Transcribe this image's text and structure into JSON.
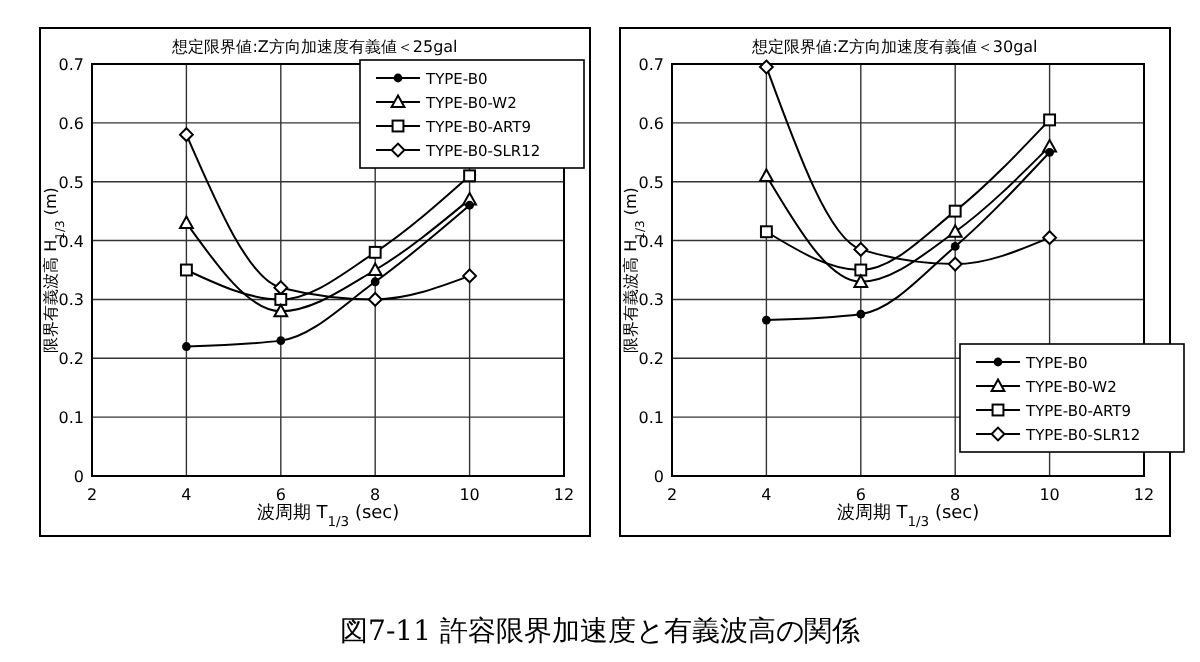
{
  "chart_data": [
    {
      "type": "line",
      "title": "想定限界値:Z方向加速度有義値＜25gal",
      "xlabel": "波周期 T$_{1/3}$ (sec)",
      "ylabel": "限界有義波高 H$_{1/3}$ (m)",
      "x": [
        4,
        6,
        8,
        10
      ],
      "xlim": [
        2,
        12
      ],
      "xticks": [
        2,
        4,
        6,
        8,
        10,
        12
      ],
      "ylim": [
        0,
        0.7
      ],
      "yticks": [
        0,
        0.1,
        0.2,
        0.3,
        0.4,
        0.5,
        0.6,
        0.7
      ],
      "grid": true,
      "legend": "top right",
      "line_style": "solid",
      "series": [
        {
          "name": "TYPE-B0",
          "color": "#000000",
          "marker": "circle",
          "values": [
            0.22,
            0.23,
            0.33,
            0.46
          ]
        },
        {
          "name": "TYPE-B0-W2",
          "color": "#000000",
          "marker": "triangle",
          "values": [
            0.43,
            0.28,
            0.35,
            0.47
          ]
        },
        {
          "name": "TYPE-B0-ART9",
          "color": "#000000",
          "marker": "square",
          "values": [
            0.35,
            0.3,
            0.38,
            0.51
          ]
        },
        {
          "name": "TYPE-B0-SLR12",
          "color": "#000000",
          "marker": "diamond",
          "values": [
            0.58,
            0.32,
            0.3,
            0.34
          ]
        }
      ],
      "annotations": [
        "図7-11 許容限界加速度と有義波高の関係"
      ]
    },
    {
      "type": "line",
      "title": "想定限界値:Z方向加速度有義値＜30gal",
      "xlabel": "波周期 T$_{1/3}$ (sec)",
      "ylabel": "限界有義波高 H$_{1/3}$ (m)",
      "x": [
        4,
        6,
        8,
        10
      ],
      "xlim": [
        2,
        12
      ],
      "xticks": [
        2,
        4,
        6,
        8,
        10,
        12
      ],
      "ylim": [
        0,
        0.7
      ],
      "yticks": [
        0,
        0.1,
        0.2,
        0.3,
        0.4,
        0.5,
        0.6,
        0.7
      ],
      "grid": true,
      "legend": "bottom right",
      "line_style": "solid",
      "series": [
        {
          "name": "TYPE-B0",
          "color": "#000000",
          "marker": "circle",
          "values": [
            0.265,
            0.275,
            0.39,
            0.55
          ]
        },
        {
          "name": "TYPE-B0-W2",
          "color": "#000000",
          "marker": "triangle",
          "values": [
            0.51,
            0.33,
            0.415,
            0.56
          ]
        },
        {
          "name": "TYPE-B0-ART9",
          "color": "#000000",
          "marker": "square",
          "values": [
            0.415,
            0.35,
            0.45,
            0.605
          ]
        },
        {
          "name": "TYPE-B0-SLR12",
          "color": "#000000",
          "marker": "diamond",
          "values": [
            0.695,
            0.385,
            0.36,
            0.405
          ]
        }
      ]
    }
  ]
}
